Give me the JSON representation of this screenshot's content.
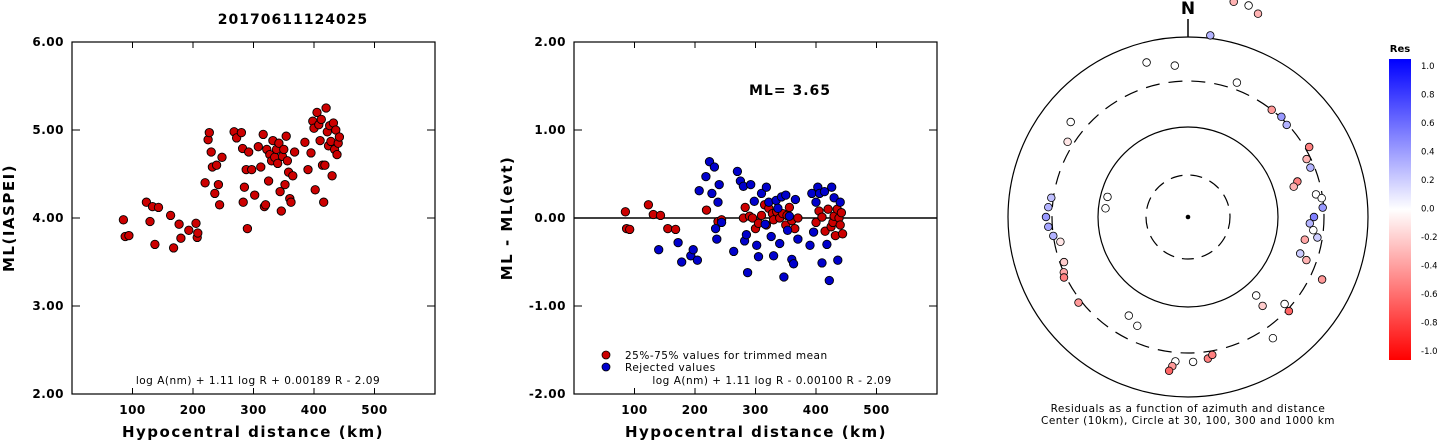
{
  "title": "20170611124025",
  "chart_data": [
    {
      "type": "scatter",
      "xlabel": "Hypocentral distance (km)",
      "ylabel": "ML(IASPEI)",
      "xlim": [
        0,
        600
      ],
      "ylim": [
        2.0,
        6.0
      ],
      "xticks": [
        "100",
        "200",
        "300",
        "400",
        "500"
      ],
      "yticks": [
        "2.00",
        "3.00",
        "4.00",
        "5.00",
        "6.00"
      ],
      "formula": "log A(nm) + 1.11 log R + 0.00189 R - 2.09",
      "series": [
        {
          "color": "#cc0000",
          "points": [
            [
              85,
              3.98
            ],
            [
              88,
              3.79
            ],
            [
              94,
              3.8
            ],
            [
              123,
              4.18
            ],
            [
              129,
              3.96
            ],
            [
              133,
              4.13
            ],
            [
              137,
              3.7
            ],
            [
              143,
              4.12
            ],
            [
              163,
              4.03
            ],
            [
              168,
              3.66
            ],
            [
              177,
              3.93
            ],
            [
              180,
              3.77
            ],
            [
              193,
              3.86
            ],
            [
              205,
              3.94
            ],
            [
              207,
              3.78
            ],
            [
              208,
              3.83
            ],
            [
              220,
              4.4
            ],
            [
              225,
              4.89
            ],
            [
              227,
              4.97
            ],
            [
              230,
              4.75
            ],
            [
              232,
              4.58
            ],
            [
              236,
              4.28
            ],
            [
              239,
              4.6
            ],
            [
              242,
              4.38
            ],
            [
              244,
              4.15
            ],
            [
              248,
              4.69
            ],
            [
              268,
              4.98
            ],
            [
              272,
              4.91
            ],
            [
              280,
              4.97
            ],
            [
              282,
              4.79
            ],
            [
              283,
              4.18
            ],
            [
              285,
              4.35
            ],
            [
              288,
              4.55
            ],
            [
              290,
              3.88
            ],
            [
              292,
              4.75
            ],
            [
              297,
              4.55
            ],
            [
              302,
              4.26
            ],
            [
              308,
              4.81
            ],
            [
              312,
              4.58
            ],
            [
              316,
              4.95
            ],
            [
              318,
              4.13
            ],
            [
              320,
              4.15
            ],
            [
              322,
              4.78
            ],
            [
              325,
              4.42
            ],
            [
              327,
              4.72
            ],
            [
              330,
              4.65
            ],
            [
              332,
              4.88
            ],
            [
              335,
              4.69
            ],
            [
              338,
              4.78
            ],
            [
              340,
              4.62
            ],
            [
              342,
              4.85
            ],
            [
              344,
              4.3
            ],
            [
              346,
              4.08
            ],
            [
              348,
              4.7
            ],
            [
              350,
              4.78
            ],
            [
              352,
              4.38
            ],
            [
              354,
              4.93
            ],
            [
              356,
              4.65
            ],
            [
              358,
              4.52
            ],
            [
              360,
              4.22
            ],
            [
              362,
              4.18
            ],
            [
              365,
              4.48
            ],
            [
              368,
              4.75
            ],
            [
              385,
              4.86
            ],
            [
              390,
              4.55
            ],
            [
              395,
              4.74
            ],
            [
              398,
              5.1
            ],
            [
              400,
              5.02
            ],
            [
              402,
              4.32
            ],
            [
              405,
              5.2
            ],
            [
              408,
              5.06
            ],
            [
              410,
              4.88
            ],
            [
              412,
              5.12
            ],
            [
              414,
              4.6
            ],
            [
              416,
              4.18
            ],
            [
              418,
              4.6
            ],
            [
              420,
              5.25
            ],
            [
              422,
              4.98
            ],
            [
              424,
              4.82
            ],
            [
              426,
              5.05
            ],
            [
              428,
              4.87
            ],
            [
              430,
              4.48
            ],
            [
              432,
              5.08
            ],
            [
              434,
              4.78
            ],
            [
              436,
              5.0
            ],
            [
              438,
              4.72
            ],
            [
              440,
              4.85
            ],
            [
              442,
              4.92
            ]
          ]
        }
      ]
    },
    {
      "type": "scatter",
      "xlabel": "Hypocentral distance (km)",
      "ylabel": "ML - ML(evt)",
      "xlim": [
        0,
        600
      ],
      "ylim": [
        -2.0,
        2.0
      ],
      "xticks": [
        "100",
        "200",
        "300",
        "400",
        "500"
      ],
      "yticks": [
        "-2.00",
        "-1.00",
        "0.00",
        "1.00",
        "2.00"
      ],
      "annotation": "ML= 3.65",
      "formula": "log A(nm) + 1.11 log R - 0.00100 R - 2.09",
      "series": [
        {
          "name": "25%-75% values for trimmed mean",
          "color": "#cc0000",
          "points": [
            [
              85,
              0.07
            ],
            [
              87,
              -0.12
            ],
            [
              92,
              -0.13
            ],
            [
              123,
              0.15
            ],
            [
              131,
              0.04
            ],
            [
              143,
              0.03
            ],
            [
              155,
              -0.12
            ],
            [
              168,
              -0.13
            ],
            [
              219,
              0.09
            ],
            [
              238,
              -0.04
            ],
            [
              244,
              -0.02
            ],
            [
              280,
              0.0
            ],
            [
              283,
              0.12
            ],
            [
              290,
              0.02
            ],
            [
              295,
              0.0
            ],
            [
              300,
              -0.12
            ],
            [
              305,
              -0.06
            ],
            [
              310,
              0.03
            ],
            [
              315,
              0.15
            ],
            [
              318,
              -0.08
            ],
            [
              322,
              0.11
            ],
            [
              328,
              0.05
            ],
            [
              330,
              -0.02
            ],
            [
              335,
              0.07
            ],
            [
              340,
              0.0
            ],
            [
              345,
              0.05
            ],
            [
              350,
              -0.08
            ],
            [
              352,
              0.03
            ],
            [
              356,
              0.12
            ],
            [
              360,
              -0.03
            ],
            [
              365,
              -0.12
            ],
            [
              370,
              0.0
            ],
            [
              400,
              -0.05
            ],
            [
              405,
              0.08
            ],
            [
              410,
              0.01
            ],
            [
              415,
              -0.15
            ],
            [
              420,
              0.1
            ],
            [
              425,
              -0.1
            ],
            [
              428,
              -0.05
            ],
            [
              430,
              0.02
            ],
            [
              432,
              -0.2
            ],
            [
              435,
              0.1
            ],
            [
              438,
              0.0
            ],
            [
              440,
              -0.08
            ],
            [
              442,
              0.06
            ],
            [
              444,
              -0.18
            ]
          ]
        },
        {
          "name": "Rejected values",
          "color": "#0000cc",
          "points": [
            [
              140,
              -0.36
            ],
            [
              172,
              -0.28
            ],
            [
              178,
              -0.5
            ],
            [
              193,
              -0.43
            ],
            [
              197,
              -0.36
            ],
            [
              204,
              -0.48
            ],
            [
              207,
              0.31
            ],
            [
              218,
              0.47
            ],
            [
              224,
              0.64
            ],
            [
              228,
              0.28
            ],
            [
              232,
              0.58
            ],
            [
              234,
              -0.12
            ],
            [
              236,
              -0.24
            ],
            [
              238,
              0.18
            ],
            [
              240,
              0.38
            ],
            [
              244,
              -0.05
            ],
            [
              264,
              -0.38
            ],
            [
              270,
              0.53
            ],
            [
              275,
              0.42
            ],
            [
              280,
              0.36
            ],
            [
              282,
              -0.26
            ],
            [
              285,
              -0.19
            ],
            [
              287,
              -0.62
            ],
            [
              292,
              0.38
            ],
            [
              298,
              0.19
            ],
            [
              302,
              -0.31
            ],
            [
              305,
              -0.44
            ],
            [
              310,
              0.28
            ],
            [
              316,
              -0.07
            ],
            [
              318,
              0.35
            ],
            [
              322,
              0.18
            ],
            [
              326,
              -0.21
            ],
            [
              330,
              -0.43
            ],
            [
              334,
              0.2
            ],
            [
              337,
              0.11
            ],
            [
              340,
              -0.29
            ],
            [
              343,
              0.24
            ],
            [
              347,
              -0.67
            ],
            [
              350,
              0.26
            ],
            [
              353,
              -0.14
            ],
            [
              356,
              0.02
            ],
            [
              360,
              -0.47
            ],
            [
              363,
              -0.52
            ],
            [
              366,
              0.21
            ],
            [
              370,
              -0.24
            ],
            [
              390,
              -0.31
            ],
            [
              393,
              0.28
            ],
            [
              396,
              -0.16
            ],
            [
              400,
              0.18
            ],
            [
              403,
              0.35
            ],
            [
              406,
              0.28
            ],
            [
              410,
              -0.51
            ],
            [
              414,
              0.3
            ],
            [
              418,
              -0.3
            ],
            [
              422,
              -0.71
            ],
            [
              426,
              0.35
            ],
            [
              430,
              0.23
            ],
            [
              436,
              -0.48
            ],
            [
              440,
              0.18
            ]
          ]
        }
      ],
      "legend": [
        "25%-75% values for trimmed mean",
        "Rejected values"
      ],
      "legend_placement": "bottom-left"
    },
    {
      "type": "polar-scatter",
      "north_label": "N",
      "caption_line1": "Residuals as a function of azimuth and distance",
      "caption_line2": "Center (10km), Circle at 30, 100, 300 and 1000 km",
      "colorbar": {
        "title": "Res",
        "ticks": [
          "1.0",
          "0.8",
          "0.6",
          "0.4",
          "0.2",
          "0.0",
          "-0.2",
          "-0.4",
          "-0.6",
          "-0.8",
          "-1.0"
        ],
        "max_color": "#0000ff",
        "zero_color": "#ffffff",
        "min_color": "#ff0000"
      },
      "stations": [
        [
          12,
          220,
          -0.3
        ],
        [
          16,
          220,
          0.0
        ],
        [
          19,
          215,
          -0.3
        ],
        [
          345,
          160,
          0.0
        ],
        [
          355,
          152,
          0.0
        ],
        [
          115,
          148,
          -0.4
        ],
        [
          133,
          138,
          -0.6
        ],
        [
          80,
          130,
          0.0
        ],
        [
          82,
          135,
          0.0
        ],
        [
          302,
          142,
          -0.1
        ],
        [
          309,
          151,
          0.0
        ],
        [
          284,
          83,
          0.0
        ],
        [
          276,
          83,
          0.0
        ],
        [
          262,
          136,
          0.3
        ],
        [
          266,
          140,
          0.35
        ],
        [
          270,
          142,
          0.4
        ],
        [
          274,
          140,
          0.3
        ],
        [
          278,
          138,
          0.25
        ],
        [
          259,
          130,
          -0.1
        ],
        [
          250,
          132,
          -0.2
        ],
        [
          246,
          136,
          -0.35
        ],
        [
          244,
          138,
          -0.5
        ],
        [
          43,
          137,
          0.4
        ],
        [
          47,
          135,
          0.3
        ],
        [
          60,
          140,
          -0.5
        ],
        [
          64,
          132,
          -0.3
        ],
        [
          68,
          132,
          0.3
        ],
        [
          72,
          115,
          -0.5
        ],
        [
          74,
          110,
          -0.3
        ],
        [
          86,
          135,
          0.4
        ],
        [
          90,
          126,
          0.5
        ],
        [
          93,
          122,
          0.3
        ],
        [
          96,
          126,
          0.0
        ],
        [
          99,
          131,
          0.2
        ],
        [
          101,
          119,
          -0.35
        ],
        [
          108,
          118,
          0.2
        ],
        [
          110,
          126,
          -0.3
        ],
        [
          139,
          104,
          0.0
        ],
        [
          145,
          148,
          0.0
        ],
        [
          140,
          116,
          -0.2
        ],
        [
          132,
          130,
          0.0
        ],
        [
          232,
          139,
          -0.4
        ],
        [
          185,
          145,
          0.0
        ],
        [
          178,
          145,
          0.0
        ],
        [
          172,
          143,
          -0.5
        ],
        [
          170,
          140,
          -0.5
        ],
        [
          186,
          150,
          -0.4
        ],
        [
          187,
          155,
          -0.6
        ],
        [
          205,
          120,
          0.0
        ],
        [
          211,
          115,
          0.0
        ],
        [
          20,
          143,
          0.0
        ],
        [
          7,
          183,
          0.3
        ],
        [
          38,
          136,
          -0.4
        ]
      ]
    }
  ]
}
